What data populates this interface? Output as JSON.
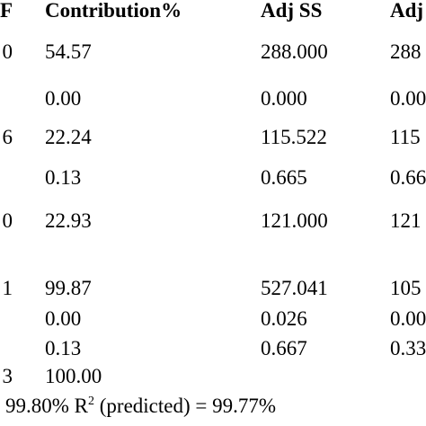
{
  "table": {
    "header": [
      "F",
      "Contribution%",
      "Adj SS",
      "Adj"
    ],
    "rows": [
      [
        "0",
        "54.57",
        "288.000",
        "288"
      ],
      [
        null,
        "0.00",
        "0.000",
        "0.00"
      ],
      [
        "6",
        "22.24",
        "115.522",
        "115"
      ],
      [
        null,
        "0.13",
        "0.665",
        "0.66"
      ],
      [
        "0",
        "22.93",
        "121.000",
        "121"
      ],
      [
        "1",
        "99.87",
        "527.041",
        "105"
      ],
      [
        null,
        "0.00",
        "0.026",
        "0.00"
      ],
      [
        null,
        "0.13",
        "0.667",
        "0.33"
      ],
      [
        "3",
        "100.00",
        null,
        null
      ]
    ]
  },
  "footer": {
    "before": "99.80% R",
    "sup": "2",
    "after": " (predicted) = 99.77%"
  }
}
